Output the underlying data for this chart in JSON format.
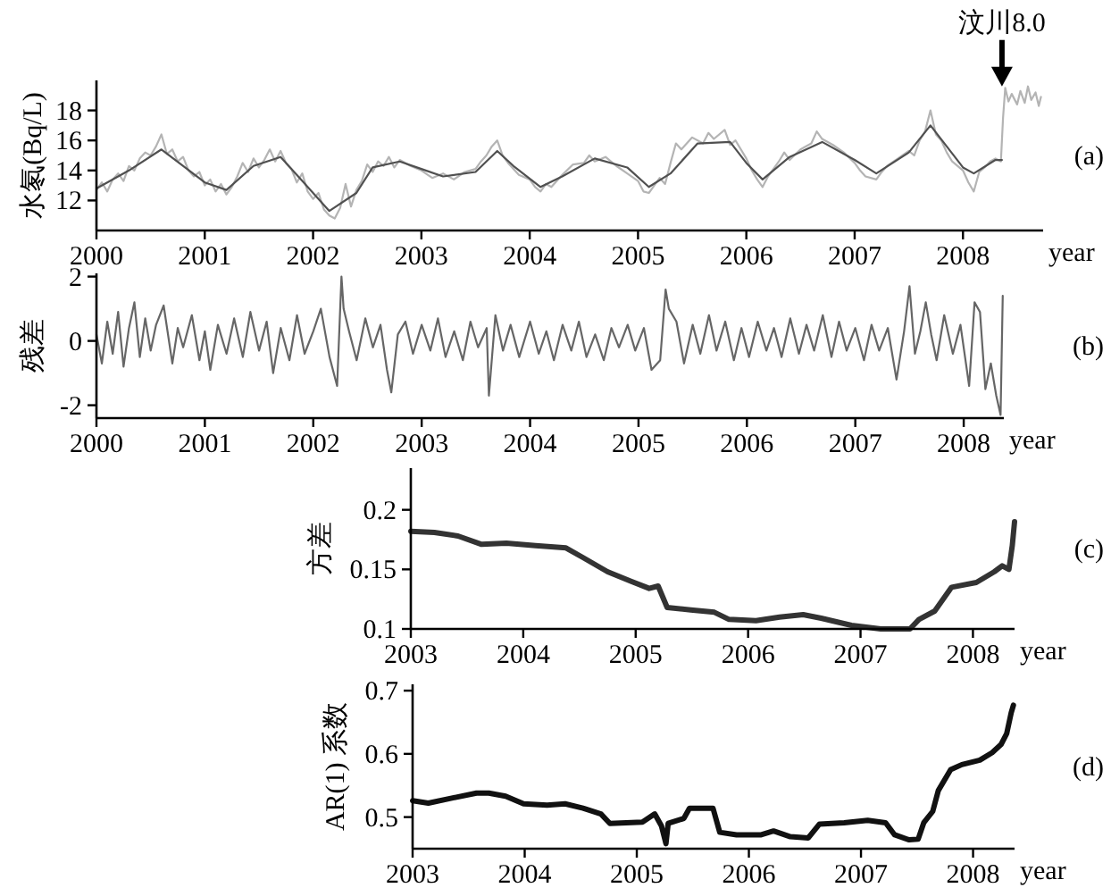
{
  "chart_data": [
    {
      "type": "line",
      "ylabel": "水氡(Bq/L)",
      "xlabel": "year",
      "xlim": [
        2000,
        2008.74
      ],
      "xticks": [
        2000,
        2001,
        2002,
        2003,
        2004,
        2005,
        2006,
        2007,
        2008
      ],
      "ylim": [
        10,
        20
      ],
      "yticks": [
        12,
        14,
        16,
        18
      ],
      "annotations": [
        "(a)",
        {
          "text": "汶川8.0",
          "x": 2008.36,
          "y": 19.6
        }
      ],
      "series": [
        {
          "color": "#b4b4b4",
          "x": [
            2000.0,
            2000.05,
            2000.1,
            2000.15,
            2000.2,
            2000.25,
            2000.3,
            2000.35,
            2000.4,
            2000.45,
            2000.5,
            2000.55,
            2000.6,
            2000.65,
            2000.7,
            2000.75,
            2000.8,
            2000.85,
            2000.9,
            2000.95,
            2001.0,
            2001.05,
            2001.1,
            2001.15,
            2001.2,
            2001.25,
            2001.3,
            2001.35,
            2001.4,
            2001.45,
            2001.5,
            2001.55,
            2001.6,
            2001.65,
            2001.7,
            2001.75,
            2001.8,
            2001.85,
            2001.9,
            2001.95,
            2002.0,
            2002.05,
            2002.1,
            2002.15,
            2002.2,
            2002.25,
            2002.3,
            2002.35,
            2002.4,
            2002.45,
            2002.5,
            2002.55,
            2002.6,
            2002.65,
            2002.7,
            2002.75,
            2002.8,
            2002.9,
            2003.0,
            2003.1,
            2003.2,
            2003.3,
            2003.4,
            2003.5,
            2003.55,
            2003.6,
            2003.65,
            2003.7,
            2003.75,
            2003.8,
            2003.9,
            2004.0,
            2004.05,
            2004.1,
            2004.15,
            2004.2,
            2004.3,
            2004.4,
            2004.5,
            2004.55,
            2004.6,
            2004.7,
            2004.8,
            2004.9,
            2005.0,
            2005.05,
            2005.1,
            2005.15,
            2005.2,
            2005.25,
            2005.3,
            2005.35,
            2005.4,
            2005.5,
            2005.6,
            2005.65,
            2005.7,
            2005.8,
            2005.85,
            2005.9,
            2006.0,
            2006.05,
            2006.1,
            2006.15,
            2006.2,
            2006.3,
            2006.35,
            2006.4,
            2006.5,
            2006.6,
            2006.65,
            2006.7,
            2006.8,
            2006.9,
            2007.0,
            2007.05,
            2007.1,
            2007.2,
            2007.25,
            2007.3,
            2007.4,
            2007.5,
            2007.55,
            2007.6,
            2007.65,
            2007.7,
            2007.75,
            2007.8,
            2007.85,
            2007.9,
            2008.0,
            2008.05,
            2008.1,
            2008.15,
            2008.2,
            2008.25,
            2008.3,
            2008.35,
            2008.37,
            2008.39,
            2008.42,
            2008.45,
            2008.5,
            2008.53,
            2008.57,
            2008.6,
            2008.63,
            2008.67,
            2008.7,
            2008.72
          ],
          "values": [
            12.7,
            13.2,
            12.6,
            13.4,
            13.8,
            13.3,
            14.3,
            14.0,
            14.8,
            15.2,
            15.0,
            15.6,
            16.4,
            15.1,
            15.4,
            14.6,
            14.9,
            14.0,
            13.6,
            13.9,
            13.0,
            13.4,
            12.6,
            13.1,
            12.4,
            12.9,
            13.6,
            14.5,
            13.9,
            14.8,
            14.2,
            14.7,
            15.4,
            14.6,
            15.3,
            14.5,
            14.1,
            13.2,
            13.8,
            12.6,
            12.1,
            12.5,
            11.4,
            11.0,
            10.8,
            11.5,
            13.1,
            11.6,
            12.7,
            13.3,
            14.4,
            13.9,
            14.6,
            14.3,
            14.9,
            14.2,
            14.7,
            14.3,
            14.0,
            13.5,
            13.8,
            13.4,
            13.9,
            14.1,
            14.6,
            15.0,
            15.6,
            16.0,
            15.0,
            14.5,
            13.7,
            13.4,
            12.9,
            12.6,
            13.1,
            12.9,
            13.7,
            14.4,
            14.5,
            15.0,
            14.6,
            14.9,
            14.3,
            13.8,
            13.3,
            12.6,
            12.5,
            13.0,
            13.5,
            13.1,
            14.5,
            15.8,
            15.4,
            16.2,
            15.8,
            16.5,
            16.1,
            16.7,
            15.7,
            16.0,
            14.8,
            14.0,
            13.4,
            12.9,
            13.6,
            14.6,
            15.2,
            14.7,
            15.4,
            15.8,
            16.6,
            16.1,
            15.7,
            15.2,
            14.5,
            14.0,
            13.6,
            13.4,
            13.9,
            14.3,
            14.8,
            15.3,
            15.0,
            16.0,
            16.6,
            18.0,
            16.4,
            16.0,
            15.2,
            14.6,
            14.0,
            13.2,
            12.6,
            13.9,
            14.2,
            14.6,
            14.8,
            14.6,
            17.5,
            19.5,
            18.6,
            19.1,
            18.4,
            19.3,
            18.5,
            19.6,
            18.7,
            19.2,
            18.3,
            18.9
          ]
        },
        {
          "color": "#505050",
          "x": [
            2000.0,
            2000.3,
            2000.6,
            2001.0,
            2001.2,
            2001.45,
            2001.7,
            2001.9,
            2002.15,
            2002.4,
            2002.55,
            2002.8,
            2003.0,
            2003.2,
            2003.5,
            2003.7,
            2003.85,
            2004.1,
            2004.3,
            2004.6,
            2004.9,
            2005.1,
            2005.3,
            2005.55,
            2005.85,
            2006.0,
            2006.15,
            2006.4,
            2006.7,
            2007.0,
            2007.2,
            2007.5,
            2007.7,
            2008.0,
            2008.1,
            2008.3,
            2008.36
          ],
          "values": [
            12.8,
            14.0,
            15.4,
            13.2,
            12.7,
            14.3,
            14.9,
            13.3,
            11.3,
            12.5,
            14.2,
            14.6,
            14.1,
            13.6,
            13.9,
            15.3,
            14.3,
            12.9,
            13.6,
            14.8,
            14.2,
            12.9,
            13.8,
            15.8,
            15.9,
            14.5,
            13.4,
            14.9,
            15.9,
            14.7,
            13.8,
            15.2,
            17.0,
            14.2,
            13.8,
            14.7,
            14.7
          ]
        }
      ]
    },
    {
      "type": "line",
      "ylabel": "残差",
      "xlabel": "year",
      "xlim": [
        2000,
        2008.37
      ],
      "xticks": [
        2000,
        2001,
        2002,
        2003,
        2004,
        2005,
        2006,
        2007,
        2008
      ],
      "ylim": [
        -2.4,
        2.1
      ],
      "yticks": [
        -2,
        0,
        2
      ],
      "annotations": [
        "(b)"
      ],
      "series": [
        {
          "color": "#666666",
          "x": [
            2000.0,
            2000.05,
            2000.1,
            2000.15,
            2000.2,
            2000.25,
            2000.3,
            2000.35,
            2000.4,
            2000.45,
            2000.5,
            2000.55,
            2000.62,
            2000.7,
            2000.75,
            2000.8,
            2000.88,
            2000.95,
            2001.0,
            2001.05,
            2001.12,
            2001.2,
            2001.27,
            2001.35,
            2001.42,
            2001.5,
            2001.57,
            2001.63,
            2001.7,
            2001.78,
            2001.85,
            2001.92,
            2002.0,
            2002.07,
            2002.15,
            2002.22,
            2002.26,
            2002.28,
            2002.33,
            2002.4,
            2002.48,
            2002.55,
            2002.62,
            2002.68,
            2002.72,
            2002.78,
            2002.85,
            2002.92,
            2003.0,
            2003.08,
            2003.15,
            2003.22,
            2003.3,
            2003.38,
            2003.45,
            2003.52,
            2003.6,
            2003.62,
            2003.68,
            2003.75,
            2003.82,
            2003.9,
            2004.0,
            2004.08,
            2004.15,
            2004.22,
            2004.3,
            2004.38,
            2004.45,
            2004.52,
            2004.6,
            2004.68,
            2004.75,
            2004.82,
            2004.9,
            2004.97,
            2005.05,
            2005.12,
            2005.2,
            2005.25,
            2005.28,
            2005.35,
            2005.42,
            2005.5,
            2005.57,
            2005.65,
            2005.72,
            2005.8,
            2005.88,
            2005.95,
            2006.02,
            2006.1,
            2006.18,
            2006.25,
            2006.32,
            2006.4,
            2006.48,
            2006.55,
            2006.62,
            2006.7,
            2006.78,
            2006.85,
            2006.92,
            2007.0,
            2007.08,
            2007.15,
            2007.22,
            2007.3,
            2007.38,
            2007.45,
            2007.5,
            2007.55,
            2007.6,
            2007.65,
            2007.7,
            2007.75,
            2007.82,
            2007.9,
            2007.97,
            2008.05,
            2008.1,
            2008.15,
            2008.2,
            2008.25,
            2008.3,
            2008.34,
            2008.36
          ],
          "values": [
            0.2,
            -0.7,
            0.6,
            -0.4,
            0.9,
            -0.8,
            0.4,
            1.2,
            -0.5,
            0.7,
            -0.3,
            0.5,
            1.1,
            -0.7,
            0.4,
            -0.2,
            0.8,
            -0.6,
            0.3,
            -0.9,
            0.5,
            -0.4,
            0.7,
            -0.5,
            0.9,
            -0.3,
            0.6,
            -1.0,
            0.4,
            -0.6,
            0.8,
            -0.4,
            0.3,
            1.0,
            -0.5,
            -1.4,
            2.0,
            1.0,
            0.3,
            -0.6,
            0.7,
            -0.2,
            0.5,
            -0.9,
            -1.6,
            0.2,
            0.6,
            -0.4,
            0.5,
            -0.3,
            0.7,
            -0.5,
            0.3,
            -0.6,
            0.6,
            -0.2,
            0.4,
            -1.7,
            0.8,
            -0.3,
            0.5,
            -0.5,
            0.6,
            -0.4,
            0.3,
            -0.6,
            0.5,
            -0.3,
            0.6,
            -0.5,
            0.2,
            -0.6,
            0.4,
            -0.2,
            0.5,
            -0.3,
            0.4,
            -0.9,
            -0.6,
            1.6,
            1.0,
            0.6,
            -0.7,
            0.5,
            -0.4,
            0.8,
            -0.3,
            0.6,
            -0.6,
            0.4,
            -0.5,
            0.6,
            -0.3,
            0.4,
            -0.5,
            0.7,
            -0.4,
            0.5,
            -0.3,
            0.8,
            -0.5,
            0.6,
            -0.3,
            0.4,
            -0.6,
            0.5,
            -0.3,
            0.4,
            -1.2,
            0.3,
            1.7,
            -0.4,
            0.3,
            1.2,
            0.2,
            -0.6,
            0.8,
            -0.4,
            0.5,
            -1.4,
            1.2,
            0.9,
            -1.5,
            -0.7,
            -1.7,
            -2.3,
            1.4
          ]
        }
      ]
    },
    {
      "type": "line",
      "ylabel": "方差",
      "xlabel": "year",
      "xlim": [
        2003,
        2008.37
      ],
      "xticks": [
        2003,
        2004,
        2005,
        2006,
        2007,
        2008
      ],
      "ylim": [
        0.1,
        0.235
      ],
      "yticks": [
        0.1,
        0.15,
        0.2
      ],
      "annotations": [
        "(c)"
      ],
      "series": [
        {
          "color": "#333333",
          "x": [
            2003.0,
            2003.21,
            2003.42,
            2003.63,
            2003.85,
            2004.11,
            2004.38,
            2004.53,
            2004.75,
            2004.96,
            2005.12,
            2005.2,
            2005.28,
            2005.49,
            2005.7,
            2005.83,
            2006.07,
            2006.28,
            2006.49,
            2006.65,
            2006.92,
            2007.18,
            2007.44,
            2007.52,
            2007.66,
            2007.81,
            2008.03,
            2008.19,
            2008.26,
            2008.32,
            2008.35,
            2008.37
          ],
          "values": [
            0.182,
            0.181,
            0.178,
            0.171,
            0.172,
            0.17,
            0.168,
            0.16,
            0.148,
            0.14,
            0.134,
            0.136,
            0.118,
            0.116,
            0.114,
            0.108,
            0.107,
            0.11,
            0.112,
            0.109,
            0.103,
            0.1,
            0.1,
            0.108,
            0.115,
            0.135,
            0.139,
            0.148,
            0.153,
            0.15,
            0.17,
            0.19
          ]
        }
      ]
    },
    {
      "type": "line",
      "ylabel": "AR(1) 系数",
      "xlabel": "year",
      "xlim": [
        2003,
        2008.37
      ],
      "xticks": [
        2003,
        2004,
        2005,
        2006,
        2007,
        2008
      ],
      "ylim": [
        0.45,
        0.71
      ],
      "yticks": [
        0.5,
        0.6,
        0.7
      ],
      "annotations": [
        "(d)"
      ],
      "series": [
        {
          "color": "#111111",
          "x": [
            2003.0,
            2003.14,
            2003.35,
            2003.57,
            2003.68,
            2003.83,
            2003.99,
            2004.2,
            2004.36,
            2004.52,
            2004.68,
            2004.76,
            2005.05,
            2005.16,
            2005.22,
            2005.26,
            2005.28,
            2005.42,
            2005.47,
            2005.68,
            2005.74,
            2005.89,
            2006.11,
            2006.22,
            2006.37,
            2006.53,
            2006.63,
            2006.85,
            2007.06,
            2007.22,
            2007.3,
            2007.43,
            2007.51,
            2007.56,
            2007.64,
            2007.69,
            2007.8,
            2007.9,
            2008.06,
            2008.17,
            2008.25,
            2008.3,
            2008.34,
            2008.36
          ],
          "values": [
            0.526,
            0.522,
            0.53,
            0.538,
            0.538,
            0.533,
            0.521,
            0.519,
            0.521,
            0.514,
            0.505,
            0.49,
            0.492,
            0.505,
            0.486,
            0.458,
            0.49,
            0.498,
            0.514,
            0.514,
            0.476,
            0.472,
            0.472,
            0.478,
            0.469,
            0.467,
            0.489,
            0.491,
            0.495,
            0.491,
            0.472,
            0.464,
            0.465,
            0.491,
            0.509,
            0.542,
            0.575,
            0.583,
            0.59,
            0.602,
            0.615,
            0.632,
            0.665,
            0.677
          ]
        }
      ]
    }
  ]
}
